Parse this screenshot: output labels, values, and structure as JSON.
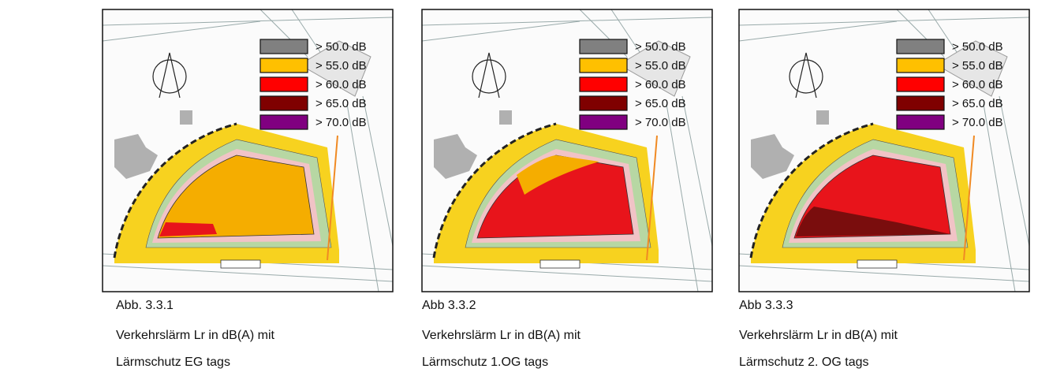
{
  "figures": [
    {
      "legend": [
        {
          "label": ">  50.0 dB",
          "color": "#808080"
        },
        {
          "label": ">  55.0 dB",
          "color": "#ffc000"
        },
        {
          "label": ">  60.0 dB",
          "color": "#ff0000"
        },
        {
          "label": ">  65.0 dB",
          "color": "#7f0000"
        },
        {
          "label": ">  70.0 dB",
          "color": "#800080"
        }
      ],
      "caption": {
        "number": "Abb. 3.3.1",
        "lines": [
          "Verkehrslärm Lr in dB(A) mit",
          "Lärmschutz EG tags"
        ]
      }
    },
    {
      "legend": [
        {
          "label": ">  50.0 dB",
          "color": "#808080"
        },
        {
          "label": ">  55.0 dB",
          "color": "#ffc000"
        },
        {
          "label": ">  60.0 dB",
          "color": "#ff0000"
        },
        {
          "label": ">  65.0 dB",
          "color": "#7f0000"
        },
        {
          "label": ">  70.0 dB",
          "color": "#800080"
        }
      ],
      "caption": {
        "number": "Abb 3.3.2",
        "lines": [
          "Verkehrslärm Lr in dB(A) mit",
          "Lärmschutz 1.OG tags"
        ]
      }
    },
    {
      "legend": [
        {
          "label": ">  50.0 dB",
          "color": "#808080"
        },
        {
          "label": ">  55.0 dB",
          "color": "#ffc000"
        },
        {
          "label": ">  60.0 dB",
          "color": "#ff0000"
        },
        {
          "label": ">  65.0 dB",
          "color": "#7f0000"
        },
        {
          "label": ">  70.0 dB",
          "color": "#800080"
        }
      ],
      "caption": {
        "number": "Abb 3.3.3",
        "lines": [
          "Verkehrslärm Lr in dB(A) mit",
          "Lärmschutz 2. OG tags"
        ]
      }
    }
  ]
}
